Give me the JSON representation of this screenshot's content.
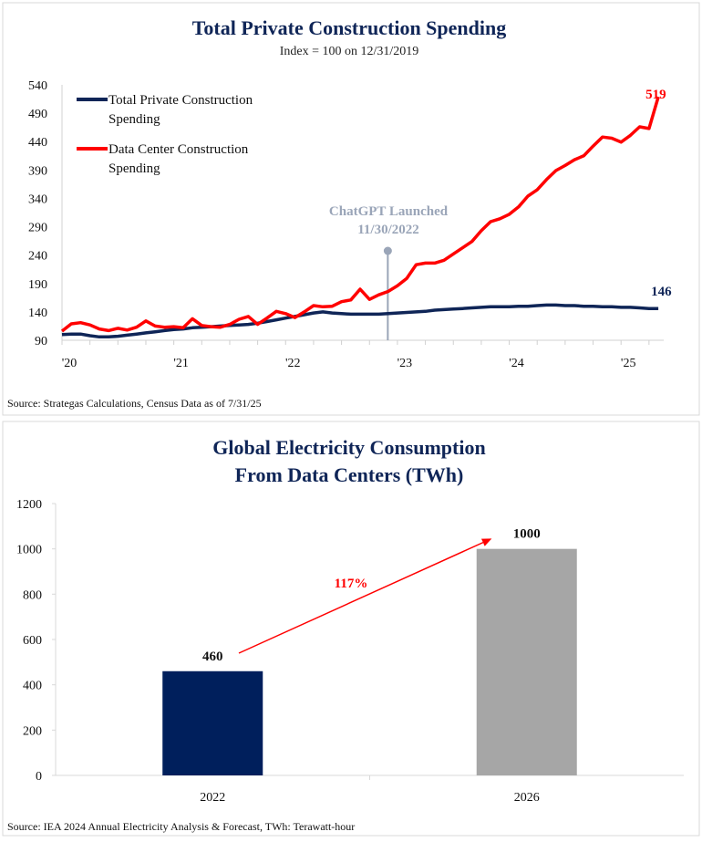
{
  "chart_data": [
    {
      "type": "line",
      "title": "Total Private Construction Spending",
      "subtitle": "Index = 100 on 12/31/2019",
      "x_start": "2020-01",
      "x_end": "2025-05",
      "x_frequency": "monthly",
      "x_tick_labels": [
        "'20",
        "'21",
        "'22",
        "'23",
        "'24",
        "'25"
      ],
      "y_tick_labels": [
        "540",
        "490",
        "440",
        "390",
        "340",
        "290",
        "240",
        "190",
        "140",
        "90"
      ],
      "ylim": [
        90,
        540
      ],
      "grid": false,
      "legend_placement": "top-left",
      "series": [
        {
          "name": "Total Private Construction Spending",
          "legend_lines": [
            "Total Private Construction",
            "Spending"
          ],
          "color": "#0f2557",
          "end_label": "146",
          "values": [
            100,
            101,
            101,
            98,
            96,
            96,
            97,
            99,
            101,
            103,
            105,
            107,
            109,
            110,
            112,
            113,
            114,
            115,
            116,
            117,
            118,
            120,
            123,
            126,
            129,
            132,
            135,
            138,
            140,
            138,
            137,
            136,
            136,
            136,
            136,
            137,
            138,
            139,
            140,
            141,
            143,
            144,
            145,
            146,
            147,
            148,
            149,
            149,
            149,
            150,
            150,
            151,
            152,
            152,
            151,
            151,
            150,
            150,
            149,
            149,
            148,
            148,
            147,
            146,
            146
          ]
        },
        {
          "name": "Data Center Construction Spending",
          "legend_lines": [
            "Data Center Construction",
            "Spending"
          ],
          "color": "#ff0000",
          "end_label": "519",
          "values": [
            106,
            119,
            121,
            117,
            110,
            107,
            111,
            108,
            113,
            124,
            115,
            113,
            114,
            112,
            128,
            116,
            114,
            113,
            118,
            127,
            132,
            118,
            129,
            141,
            137,
            130,
            140,
            151,
            149,
            150,
            158,
            161,
            180,
            162,
            170,
            176,
            186,
            199,
            223,
            226,
            226,
            231,
            242,
            253,
            264,
            283,
            299,
            304,
            312,
            325,
            344,
            355,
            373,
            389,
            398,
            408,
            415,
            432,
            448,
            446,
            439,
            451,
            466,
            463,
            519
          ]
        }
      ],
      "annotation": {
        "lines": [
          "ChatGPT Launched",
          "11/30/2022"
        ],
        "date": "2022-11-30",
        "color": "#9aa5b8"
      },
      "source": "Source: Strategas Calculations, Census Data as of 7/31/25"
    },
    {
      "type": "bar",
      "title_lines": [
        "Global Electricity Consumption",
        "From Data Centers (TWh)"
      ],
      "categories": [
        "2022",
        "2026"
      ],
      "values": [
        460,
        1000
      ],
      "data_labels": [
        "460",
        "1000"
      ],
      "colors": [
        "#001f5c",
        "#a6a6a6"
      ],
      "ylim": [
        0,
        1200
      ],
      "y_tick_labels": [
        "0",
        "200",
        "400",
        "600",
        "800",
        "1000",
        "1200"
      ],
      "grid": false,
      "annotation": {
        "text": "117%",
        "color": "#ff0000"
      },
      "source": "Source: IEA 2024 Annual Electricity Analysis & Forecast, TWh: Terawatt-hour"
    }
  ]
}
